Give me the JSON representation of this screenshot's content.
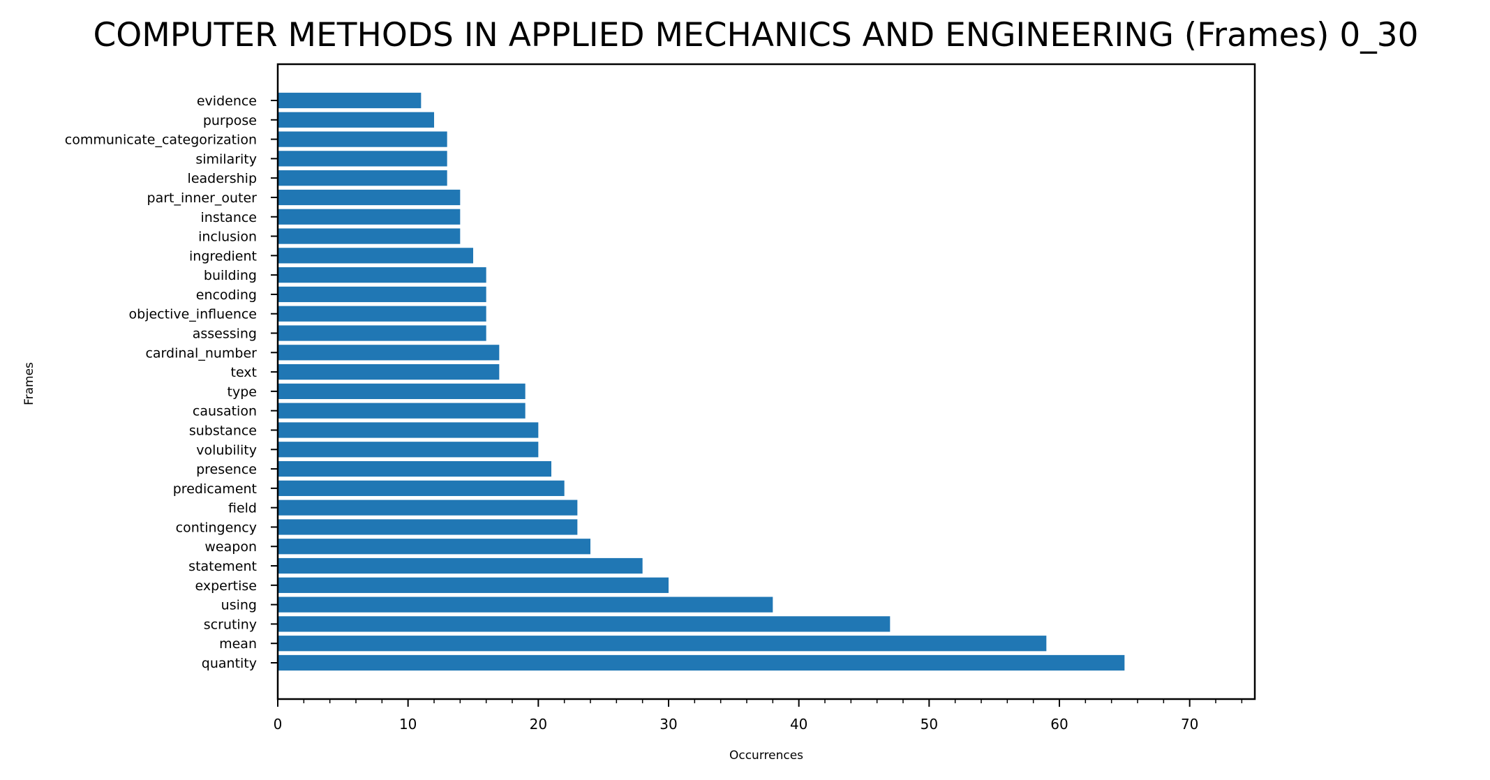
{
  "chart_data": {
    "type": "bar",
    "orientation": "horizontal",
    "title": "COMPUTER METHODS IN APPLIED MECHANICS AND ENGINEERING (Frames) 0_30",
    "xlabel": "Occurrences",
    "ylabel": "Frames",
    "xlim": [
      0,
      75
    ],
    "xticks": [
      "0",
      "10",
      "20",
      "30",
      "40",
      "50",
      "60",
      "70"
    ],
    "grid": false,
    "bar_color": "#2077b4",
    "categories": [
      "evidence",
      "purpose",
      "communicate_categorization",
      "similarity",
      "leadership",
      "part_inner_outer",
      "instance",
      "inclusion",
      "ingredient",
      "building",
      "encoding",
      "objective_influence",
      "assessing",
      "cardinal_number",
      "text",
      "type",
      "causation",
      "substance",
      "volubility",
      "presence",
      "predicament",
      "field",
      "contingency",
      "weapon",
      "statement",
      "expertise",
      "using",
      "scrutiny",
      "mean",
      "quantity"
    ],
    "values": [
      11,
      12,
      13,
      13,
      13,
      14,
      14,
      14,
      15,
      16,
      16,
      16,
      16,
      17,
      17,
      19,
      19,
      20,
      20,
      21,
      22,
      23,
      23,
      24,
      28,
      30,
      38,
      47,
      59,
      65
    ]
  }
}
